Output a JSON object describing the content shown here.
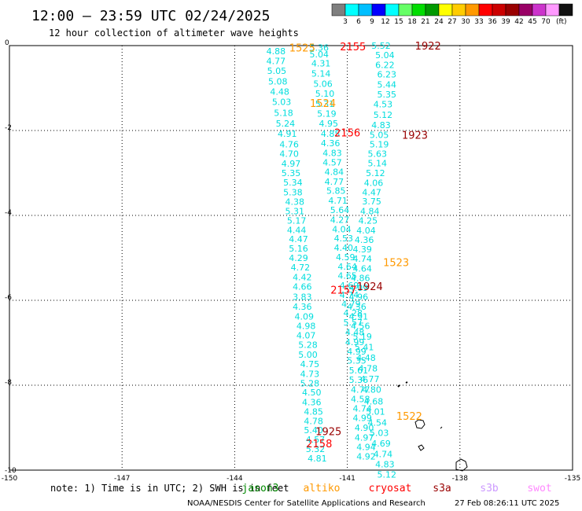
{
  "header": {
    "title": "12:00 – 23:59 UTC 02/24/2025",
    "subtitle": "12 hour collection of altimeter wave heights"
  },
  "colorbar": {
    "unit": "(ft)",
    "colors": [
      "#7f7f7f",
      "#00ffff",
      "#00bfff",
      "#0000ff",
      "#00ffff",
      "#66ff66",
      "#00dd00",
      "#009900",
      "#ffff00",
      "#ffcc00",
      "#ff9900",
      "#ff0000",
      "#cc0000",
      "#990000",
      "#990066",
      "#cc33cc",
      "#ff99ff",
      "#111111"
    ],
    "labels": [
      "3",
      "6",
      "9",
      "12",
      "15",
      "18",
      "21",
      "24",
      "27",
      "30",
      "33",
      "36",
      "39",
      "42",
      "45",
      "70"
    ]
  },
  "footer": {
    "note": "note:  1) Time is in UTC;  2) SWH is in feet",
    "satellites": [
      {
        "name": "jason3",
        "color": "#008800"
      },
      {
        "name": "altiko",
        "color": "#ff9900"
      },
      {
        "name": "cryosat",
        "color": "#ff0000"
      },
      {
        "name": "s3a",
        "color": "#990000"
      },
      {
        "name": "s3b",
        "color": "#cc99ff"
      },
      {
        "name": "swot",
        "color": "#ff88ff"
      }
    ],
    "credit": "NOAA/NESDIS Center for Satellite Applications and Research",
    "timestamp": "27 Feb 08:26:11 UTC 2025"
  },
  "chart_data": {
    "type": "scatter",
    "xlim": [
      -150,
      -135
    ],
    "ylim": [
      -10,
      0
    ],
    "xticks": [
      "-150",
      "-147",
      "-144",
      "-141",
      "-138",
      "-135"
    ],
    "yticks": [
      "0",
      "-2",
      "-4",
      "-6",
      "-8",
      "-10"
    ],
    "grid": true,
    "series": [
      {
        "color": "#00dddd",
        "points": [
          {
            "x": -142.9,
            "y": -0.13,
            "label": "4.88"
          },
          {
            "x": -142.9,
            "y": -0.36,
            "label": "4.77"
          },
          {
            "x": -142.88,
            "y": -0.59,
            "label": "5.05"
          },
          {
            "x": -142.85,
            "y": -0.84,
            "label": "5.08"
          },
          {
            "x": -142.8,
            "y": -1.08,
            "label": "4.48"
          },
          {
            "x": -142.75,
            "y": -1.32,
            "label": "5.03"
          },
          {
            "x": -142.7,
            "y": -1.58,
            "label": "5.18"
          },
          {
            "x": -142.65,
            "y": -1.83,
            "label": "5.24"
          },
          {
            "x": -142.6,
            "y": -2.07,
            "label": "4.91"
          },
          {
            "x": -142.55,
            "y": -2.32,
            "label": "4.76"
          },
          {
            "x": -142.55,
            "y": -2.55,
            "label": "4.70"
          },
          {
            "x": -142.5,
            "y": -2.78,
            "label": "4.97"
          },
          {
            "x": -142.5,
            "y": -3.0,
            "label": "5.35"
          },
          {
            "x": -142.45,
            "y": -3.22,
            "label": "5.34"
          },
          {
            "x": -142.45,
            "y": -3.45,
            "label": "5.38"
          },
          {
            "x": -142.4,
            "y": -3.68,
            "label": "4.38"
          },
          {
            "x": -142.4,
            "y": -3.9,
            "label": "5.31"
          },
          {
            "x": -142.35,
            "y": -4.12,
            "label": "5.17"
          },
          {
            "x": -142.35,
            "y": -4.34,
            "label": "4.44"
          },
          {
            "x": -142.3,
            "y": -4.56,
            "label": "4.47"
          },
          {
            "x": -142.3,
            "y": -4.78,
            "label": "5.16"
          },
          {
            "x": -142.3,
            "y": -5.0,
            "label": "4.29"
          },
          {
            "x": -142.25,
            "y": -5.22,
            "label": "4.72"
          },
          {
            "x": -142.2,
            "y": -5.45,
            "label": "4.42"
          },
          {
            "x": -142.2,
            "y": -5.68,
            "label": "4.66"
          },
          {
            "x": -142.2,
            "y": -5.92,
            "label": "3.83"
          },
          {
            "x": -142.2,
            "y": -6.15,
            "label": "4.36"
          },
          {
            "x": -142.15,
            "y": -6.38,
            "label": "4.09"
          },
          {
            "x": -142.1,
            "y": -6.6,
            "label": "4.98"
          },
          {
            "x": -142.1,
            "y": -6.82,
            "label": "4.07"
          },
          {
            "x": -142.05,
            "y": -7.05,
            "label": "5.28"
          },
          {
            "x": -142.05,
            "y": -7.28,
            "label": "5.00"
          },
          {
            "x": -142.0,
            "y": -7.5,
            "label": "4.75"
          },
          {
            "x": -142.0,
            "y": -7.73,
            "label": "4.73"
          },
          {
            "x": -142.0,
            "y": -7.95,
            "label": "5.28"
          },
          {
            "x": -141.95,
            "y": -8.17,
            "label": "4.50"
          },
          {
            "x": -141.95,
            "y": -8.4,
            "label": "4.36"
          },
          {
            "x": -141.9,
            "y": -8.62,
            "label": "4.85"
          },
          {
            "x": -141.9,
            "y": -8.84,
            "label": "4.78"
          },
          {
            "x": -141.9,
            "y": -9.06,
            "label": "5.40"
          },
          {
            "x": -141.85,
            "y": -9.28,
            "label": "4.57"
          },
          {
            "x": -141.85,
            "y": -9.5,
            "label": "5.32"
          },
          {
            "x": -141.8,
            "y": -9.72,
            "label": "4.81"
          }
        ]
      },
      {
        "color": "#00dddd",
        "points": [
          {
            "x": -141.75,
            "y": -0.05,
            "label": "5.36"
          },
          {
            "x": -141.75,
            "y": -0.2,
            "label": "5.04"
          },
          {
            "x": -141.7,
            "y": -0.42,
            "label": "4.31"
          },
          {
            "x": -141.7,
            "y": -0.66,
            "label": "5.14"
          },
          {
            "x": -141.65,
            "y": -0.9,
            "label": "5.06"
          },
          {
            "x": -141.6,
            "y": -1.13,
            "label": "5.10"
          },
          {
            "x": -141.6,
            "y": -1.37,
            "label": "5.31"
          },
          {
            "x": -141.55,
            "y": -1.6,
            "label": "5.19"
          },
          {
            "x": -141.5,
            "y": -1.83,
            "label": "4.95"
          },
          {
            "x": -141.45,
            "y": -2.07,
            "label": "4.85"
          },
          {
            "x": -141.45,
            "y": -2.3,
            "label": "4.36"
          },
          {
            "x": -141.4,
            "y": -2.53,
            "label": "4.83"
          },
          {
            "x": -141.4,
            "y": -2.75,
            "label": "4.57"
          },
          {
            "x": -141.35,
            "y": -2.97,
            "label": "4.84"
          },
          {
            "x": -141.35,
            "y": -3.2,
            "label": "4.77"
          },
          {
            "x": -141.3,
            "y": -3.42,
            "label": "5.85"
          },
          {
            "x": -141.25,
            "y": -3.65,
            "label": "4.71"
          },
          {
            "x": -141.2,
            "y": -3.87,
            "label": "5.64"
          },
          {
            "x": -141.2,
            "y": -4.1,
            "label": "4.27"
          },
          {
            "x": -141.15,
            "y": -4.32,
            "label": "4.04"
          },
          {
            "x": -141.1,
            "y": -4.54,
            "label": "4.53"
          },
          {
            "x": -141.1,
            "y": -4.76,
            "label": "4.40"
          },
          {
            "x": -141.05,
            "y": -4.98,
            "label": "4.59"
          },
          {
            "x": -141.0,
            "y": -5.2,
            "label": "4.64"
          },
          {
            "x": -141.0,
            "y": -5.42,
            "label": "4.65"
          },
          {
            "x": -140.95,
            "y": -5.65,
            "label": "4.69"
          },
          {
            "x": -140.95,
            "y": -5.87,
            "label": "4.74"
          },
          {
            "x": -140.9,
            "y": -6.08,
            "label": "4.79"
          },
          {
            "x": -140.85,
            "y": -6.3,
            "label": "4.28"
          },
          {
            "x": -140.85,
            "y": -6.52,
            "label": "5.57"
          },
          {
            "x": -140.8,
            "y": -6.75,
            "label": "4.48"
          },
          {
            "x": -140.8,
            "y": -6.98,
            "label": "4.99"
          },
          {
            "x": -140.75,
            "y": -7.2,
            "label": "4.99"
          },
          {
            "x": -140.75,
            "y": -7.42,
            "label": "5.35"
          },
          {
            "x": -140.7,
            "y": -7.65,
            "label": "5.61"
          },
          {
            "x": -140.7,
            "y": -7.87,
            "label": "5.36"
          },
          {
            "x": -140.65,
            "y": -8.1,
            "label": "4.77"
          },
          {
            "x": -140.65,
            "y": -8.32,
            "label": "4.58"
          },
          {
            "x": -140.6,
            "y": -8.55,
            "label": "4.74"
          },
          {
            "x": -140.6,
            "y": -8.77,
            "label": "4.99"
          },
          {
            "x": -140.55,
            "y": -9.0,
            "label": "4.90"
          },
          {
            "x": -140.55,
            "y": -9.23,
            "label": "4.97"
          },
          {
            "x": -140.5,
            "y": -9.45,
            "label": "4.94"
          },
          {
            "x": -140.5,
            "y": -9.68,
            "label": "4.92"
          }
        ]
      },
      {
        "color": "#00dddd",
        "points": [
          {
            "x": -140.1,
            "y": 0.0,
            "label": "5.52"
          },
          {
            "x": -140.0,
            "y": -0.22,
            "label": "5.04"
          },
          {
            "x": -140.0,
            "y": -0.45,
            "label": "6.22"
          },
          {
            "x": -139.95,
            "y": -0.68,
            "label": "6.23"
          },
          {
            "x": -139.95,
            "y": -0.92,
            "label": "5.44"
          },
          {
            "x": -139.95,
            "y": -1.15,
            "label": "5.35"
          },
          {
            "x": -140.05,
            "y": -1.38,
            "label": "4.53"
          },
          {
            "x": -140.05,
            "y": -1.63,
            "label": "5.12"
          },
          {
            "x": -140.1,
            "y": -1.87,
            "label": "4.83"
          },
          {
            "x": -140.15,
            "y": -2.1,
            "label": "5.05"
          },
          {
            "x": -140.15,
            "y": -2.32,
            "label": "5.19"
          },
          {
            "x": -140.2,
            "y": -2.55,
            "label": "5.63"
          },
          {
            "x": -140.2,
            "y": -2.77,
            "label": "5.14"
          },
          {
            "x": -140.25,
            "y": -3.0,
            "label": "5.12"
          },
          {
            "x": -140.3,
            "y": -3.23,
            "label": "4.06"
          },
          {
            "x": -140.35,
            "y": -3.45,
            "label": "4.47"
          },
          {
            "x": -140.35,
            "y": -3.67,
            "label": "3.75"
          },
          {
            "x": -140.4,
            "y": -3.9,
            "label": "4.84"
          },
          {
            "x": -140.45,
            "y": -4.12,
            "label": "4.25"
          },
          {
            "x": -140.5,
            "y": -4.35,
            "label": "4.04"
          },
          {
            "x": -140.55,
            "y": -4.57,
            "label": "4.36"
          },
          {
            "x": -140.6,
            "y": -4.8,
            "label": "4.39"
          },
          {
            "x": -140.6,
            "y": -5.02,
            "label": "4.74"
          },
          {
            "x": -140.6,
            "y": -5.25,
            "label": "4.64"
          },
          {
            "x": -140.65,
            "y": -5.47,
            "label": "4.86"
          },
          {
            "x": -140.7,
            "y": -5.7,
            "label": "4.09"
          },
          {
            "x": -140.7,
            "y": -5.92,
            "label": "4.96"
          },
          {
            "x": -140.75,
            "y": -6.15,
            "label": "4.36"
          },
          {
            "x": -140.7,
            "y": -6.38,
            "label": "4.91"
          },
          {
            "x": -140.65,
            "y": -6.6,
            "label": "4.56"
          },
          {
            "x": -140.6,
            "y": -6.85,
            "label": "5.19"
          },
          {
            "x": -140.55,
            "y": -7.1,
            "label": "5.41"
          },
          {
            "x": -140.5,
            "y": -7.35,
            "label": "4.48"
          },
          {
            "x": -140.45,
            "y": -7.6,
            "label": "4.78"
          },
          {
            "x": -140.4,
            "y": -7.85,
            "label": "4.77"
          },
          {
            "x": -140.35,
            "y": -8.1,
            "label": "4.80"
          },
          {
            "x": -140.3,
            "y": -8.38,
            "label": "4.68"
          },
          {
            "x": -140.25,
            "y": -8.62,
            "label": "5.01"
          },
          {
            "x": -140.2,
            "y": -8.88,
            "label": "4.54"
          },
          {
            "x": -140.15,
            "y": -9.12,
            "label": "5.03"
          },
          {
            "x": -140.1,
            "y": -9.37,
            "label": "4.69"
          },
          {
            "x": -140.05,
            "y": -9.62,
            "label": "4.74"
          },
          {
            "x": -140.0,
            "y": -9.86,
            "label": "4.83"
          },
          {
            "x": -139.95,
            "y": -10.1,
            "label": "5.12"
          }
        ]
      }
    ],
    "time_labels": [
      {
        "x": -142.2,
        "y": -0.05,
        "label": "1525",
        "color": "#ff9900"
      },
      {
        "x": -140.85,
        "y": -0.02,
        "label": "2155",
        "color": "#ff0000"
      },
      {
        "x": -138.85,
        "y": 0.0,
        "label": "1922",
        "color": "#990000"
      },
      {
        "x": -141.65,
        "y": -1.35,
        "label": "1524",
        "color": "#ff9900"
      },
      {
        "x": -141.0,
        "y": -2.05,
        "label": "2156",
        "color": "#ff0000"
      },
      {
        "x": -139.2,
        "y": -2.1,
        "label": "1923",
        "color": "#990000"
      },
      {
        "x": -139.7,
        "y": -5.1,
        "label": "1523",
        "color": "#ff9900"
      },
      {
        "x": -140.4,
        "y": -5.67,
        "label": "1924",
        "color": "#990000"
      },
      {
        "x": -141.1,
        "y": -5.75,
        "label": "2157",
        "color": "#ff0000"
      },
      {
        "x": -139.35,
        "y": -8.72,
        "label": "1522",
        "color": "#ff9900"
      },
      {
        "x": -141.5,
        "y": -9.08,
        "label": "1925",
        "color": "#990000"
      },
      {
        "x": -141.75,
        "y": -9.37,
        "label": "2158",
        "color": "#ff0000"
      }
    ]
  }
}
